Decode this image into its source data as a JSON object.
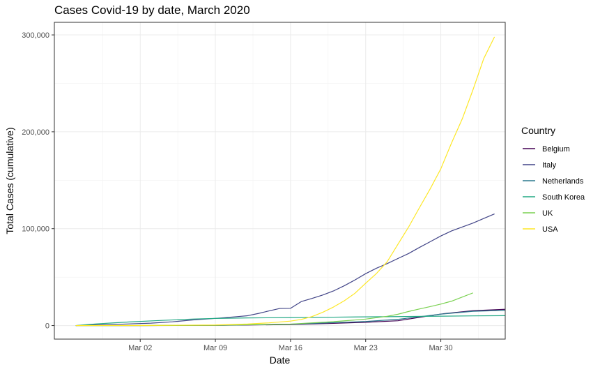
{
  "chart_data": {
    "type": "line",
    "title": "Cases Covid-19 by date, March 2020",
    "xlabel": "Date",
    "ylabel": "Total Cases (cumulative)",
    "xlim": [
      "2020-02-23",
      "2020-04-05"
    ],
    "ylim": [
      -14000,
      313000
    ],
    "x_ticks": [
      {
        "date": "2020-03-02",
        "label": "Mar 02"
      },
      {
        "date": "2020-03-09",
        "label": "Mar 09"
      },
      {
        "date": "2020-03-16",
        "label": "Mar 16"
      },
      {
        "date": "2020-03-23",
        "label": "Mar 23"
      },
      {
        "date": "2020-03-30",
        "label": "Mar 30"
      }
    ],
    "y_ticks": [
      {
        "value": 0,
        "label": "0"
      },
      {
        "value": 100000,
        "label": "100,000"
      },
      {
        "value": 200000,
        "label": "200,000"
      },
      {
        "value": 300000,
        "label": "300,000"
      }
    ],
    "grid": true,
    "legend": {
      "title": "Country",
      "position": "right"
    },
    "series": [
      {
        "name": "Belgium",
        "color": "#440154",
        "points": [
          [
            "2020-02-25",
            0
          ],
          [
            "2020-03-02",
            8
          ],
          [
            "2020-03-09",
            239
          ],
          [
            "2020-03-16",
            1058
          ],
          [
            "2020-03-20",
            2257
          ],
          [
            "2020-03-23",
            3401
          ],
          [
            "2020-03-26",
            4937
          ],
          [
            "2020-03-30",
            11899
          ],
          [
            "2020-04-02",
            15348
          ],
          [
            "2020-04-05",
            16770
          ]
        ]
      },
      {
        "name": "Italy",
        "color": "#414487",
        "points": [
          [
            "2020-02-25",
            0
          ],
          [
            "2020-02-26",
            453
          ],
          [
            "2020-02-28",
            888
          ],
          [
            "2020-03-01",
            1694
          ],
          [
            "2020-03-03",
            2502
          ],
          [
            "2020-03-05",
            3858
          ],
          [
            "2020-03-07",
            5883
          ],
          [
            "2020-03-09",
            7375
          ],
          [
            "2020-03-11",
            9172
          ],
          [
            "2020-03-12",
            10149
          ],
          [
            "2020-03-13",
            12462
          ],
          [
            "2020-03-14",
            15113
          ],
          [
            "2020-03-15",
            17660
          ],
          [
            "2020-03-16",
            17750
          ],
          [
            "2020-03-17",
            24747
          ],
          [
            "2020-03-18",
            27980
          ],
          [
            "2020-03-19",
            31506
          ],
          [
            "2020-03-20",
            35713
          ],
          [
            "2020-03-21",
            41035
          ],
          [
            "2020-03-22",
            47021
          ],
          [
            "2020-03-23",
            53578
          ],
          [
            "2020-03-24",
            59138
          ],
          [
            "2020-03-25",
            63927
          ],
          [
            "2020-03-26",
            69176
          ],
          [
            "2020-03-27",
            74386
          ],
          [
            "2020-03-28",
            80589
          ],
          [
            "2020-03-29",
            86498
          ],
          [
            "2020-03-30",
            92472
          ],
          [
            "2020-03-31",
            97689
          ],
          [
            "2020-04-01",
            101739
          ],
          [
            "2020-04-02",
            105792
          ],
          [
            "2020-04-03",
            110574
          ],
          [
            "2020-04-04",
            115242
          ]
        ]
      },
      {
        "name": "Netherlands",
        "color": "#2A788E",
        "points": [
          [
            "2020-02-25",
            0
          ],
          [
            "2020-03-02",
            18
          ],
          [
            "2020-03-09",
            321
          ],
          [
            "2020-03-16",
            1413
          ],
          [
            "2020-03-20",
            2994
          ],
          [
            "2020-03-23",
            4204
          ],
          [
            "2020-03-26",
            6412
          ],
          [
            "2020-03-30",
            11750
          ],
          [
            "2020-04-02",
            14697
          ],
          [
            "2020-04-05",
            15723
          ]
        ]
      },
      {
        "name": "South Korea",
        "color": "#22A884",
        "points": [
          [
            "2020-02-25",
            0
          ],
          [
            "2020-02-27",
            1766
          ],
          [
            "2020-03-01",
            3736
          ],
          [
            "2020-03-04",
            5328
          ],
          [
            "2020-03-07",
            6767
          ],
          [
            "2020-03-09",
            7313
          ],
          [
            "2020-03-12",
            7869
          ],
          [
            "2020-03-16",
            8236
          ],
          [
            "2020-03-20",
            8652
          ],
          [
            "2020-03-23",
            8961
          ],
          [
            "2020-03-26",
            9241
          ],
          [
            "2020-03-30",
            9661
          ],
          [
            "2020-04-02",
            9976
          ],
          [
            "2020-04-05",
            10237
          ]
        ]
      },
      {
        "name": "UK",
        "color": "#7AD151",
        "points": [
          [
            "2020-02-25",
            0
          ],
          [
            "2020-03-02",
            36
          ],
          [
            "2020-03-09",
            321
          ],
          [
            "2020-03-16",
            1543
          ],
          [
            "2020-03-20",
            3983
          ],
          [
            "2020-03-23",
            6650
          ],
          [
            "2020-03-25",
            9529
          ],
          [
            "2020-03-26",
            11658
          ],
          [
            "2020-03-27",
            14543
          ],
          [
            "2020-03-28",
            17089
          ],
          [
            "2020-03-29",
            19522
          ],
          [
            "2020-03-30",
            22141
          ],
          [
            "2020-03-31",
            25150
          ],
          [
            "2020-04-01",
            29474
          ],
          [
            "2020-04-02",
            33718
          ]
        ]
      },
      {
        "name": "USA",
        "color": "#FDE725",
        "points": [
          [
            "2020-02-25",
            0
          ],
          [
            "2020-03-02",
            100
          ],
          [
            "2020-03-09",
            600
          ],
          [
            "2020-03-12",
            1600
          ],
          [
            "2020-03-14",
            2800
          ],
          [
            "2020-03-16",
            4600
          ],
          [
            "2020-03-17",
            6300
          ],
          [
            "2020-03-18",
            9300
          ],
          [
            "2020-03-19",
            13700
          ],
          [
            "2020-03-20",
            19100
          ],
          [
            "2020-03-21",
            25500
          ],
          [
            "2020-03-22",
            33300
          ],
          [
            "2020-03-23",
            43700
          ],
          [
            "2020-03-24",
            53700
          ],
          [
            "2020-03-25",
            65800
          ],
          [
            "2020-03-26",
            83800
          ],
          [
            "2020-03-27",
            101700
          ],
          [
            "2020-03-28",
            121500
          ],
          [
            "2020-03-29",
            140900
          ],
          [
            "2020-03-30",
            161800
          ],
          [
            "2020-03-31",
            188500
          ],
          [
            "2020-04-01",
            213400
          ],
          [
            "2020-04-02",
            243500
          ],
          [
            "2020-04-03",
            275600
          ],
          [
            "2020-04-04",
            298000
          ]
        ]
      }
    ]
  }
}
